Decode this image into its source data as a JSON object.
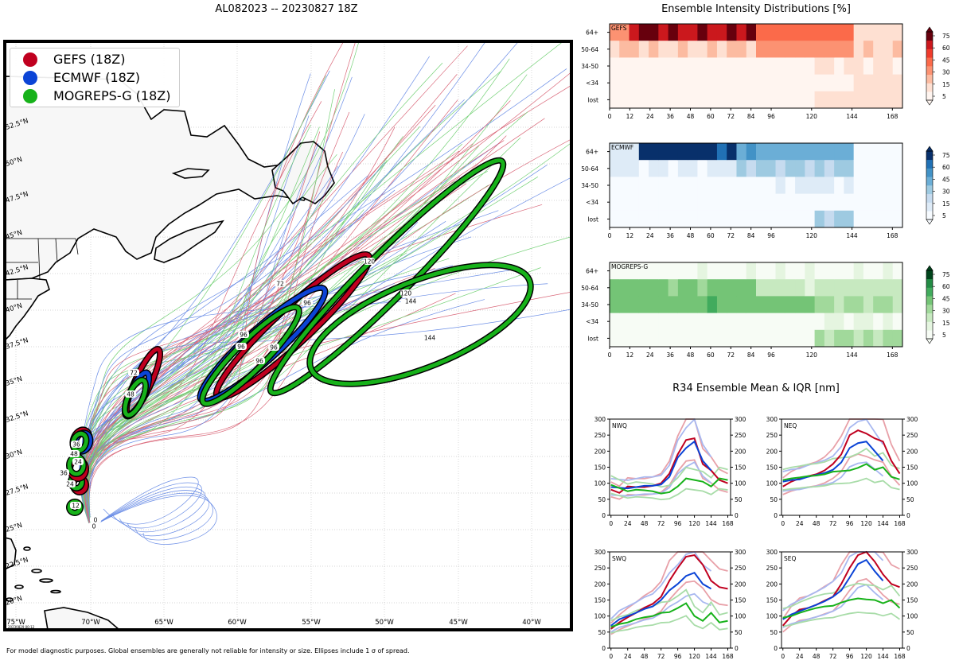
{
  "map": {
    "title": "AL082023 -- 20230827 18Z",
    "footer": "For model diagnostic purposes. Global ensembles are generally not reliable for intensity or size. Ellipses include 1 σ of spread.",
    "stamp": "20230829 00:12",
    "legend": [
      {
        "label": "GEFS (18Z)",
        "color": "#c0001f"
      },
      {
        "label": "ECMWF (18Z)",
        "color": "#0b44d6"
      },
      {
        "label": "MOGREPS-G (18Z)",
        "color": "#17b21a"
      }
    ],
    "lon_labels": [
      "75°W",
      "70°W",
      "65°W",
      "60°W",
      "55°W",
      "50°W",
      "45°W",
      "40°W"
    ],
    "lat_labels": [
      "20°N",
      "22.5°N",
      "25°N",
      "27.5°N",
      "30°N",
      "32.5°N",
      "35°N",
      "37.5°N",
      "40°N",
      "42.5°N",
      "45°N",
      "47.5°N",
      "50°N",
      "52.5°N"
    ],
    "hour_labels": [
      "0",
      "0",
      "12",
      "24",
      "24",
      "36",
      "36",
      "48",
      "48",
      "72",
      "72",
      "96",
      "96",
      "96",
      "96",
      "96",
      "120",
      "120",
      "144",
      "144"
    ]
  },
  "chart_data": [
    {
      "type": "heatmap",
      "title": "Ensemble Intensity Distributions [%]",
      "panel": "GEFS",
      "rows": [
        "64+",
        "50-64",
        "34-50",
        "<34",
        "lost"
      ],
      "x_ticks": [
        "0",
        "12",
        "24",
        "36",
        "48",
        "60",
        "72",
        "84",
        "96",
        "120",
        "144",
        "168"
      ],
      "x_range": [
        0,
        174
      ],
      "colorbar_ticks": [
        "75",
        "60",
        "45",
        "30",
        "15",
        "5"
      ],
      "colormap": "Reds"
    },
    {
      "type": "heatmap",
      "panel": "ECMWF",
      "rows": [
        "64+",
        "50-64",
        "34-50",
        "<34",
        "lost"
      ],
      "x_ticks": [
        "0",
        "12",
        "24",
        "36",
        "48",
        "60",
        "72",
        "84",
        "96",
        "120",
        "144",
        "168"
      ],
      "x_range": [
        0,
        174
      ],
      "colorbar_ticks": [
        "75",
        "60",
        "45",
        "30",
        "15",
        "5"
      ],
      "colormap": "Blues"
    },
    {
      "type": "heatmap",
      "panel": "MOGREPS-G",
      "rows": [
        "64+",
        "50-64",
        "34-50",
        "<34",
        "lost"
      ],
      "x_ticks": [
        "0",
        "12",
        "24",
        "36",
        "48",
        "60",
        "72",
        "84",
        "96",
        "120",
        "144",
        "168"
      ],
      "x_range": [
        0,
        174
      ],
      "colorbar_ticks": [
        "75",
        "60",
        "45",
        "30",
        "15",
        "5"
      ],
      "colormap": "Greens"
    },
    {
      "type": "line",
      "title": "R34 Ensemble Mean & IQR [nm]",
      "panels": [
        {
          "name": "NWQ",
          "series": [
            {
              "name": "GEFS",
              "x": [
                0,
                12,
                24,
                36,
                48,
                60,
                72,
                84,
                96,
                108,
                120,
                132,
                144,
                156,
                168
              ],
              "values": [
                80,
                70,
                90,
                88,
                88,
                92,
                100,
                130,
                190,
                235,
                240,
                160,
                140,
                110,
                100
              ]
            },
            {
              "name": "ECMWF",
              "x": [
                0,
                12,
                24,
                36,
                48,
                60,
                72,
                84,
                96,
                108,
                120,
                132,
                144
              ],
              "values": [
                88,
                86,
                84,
                88,
                92,
                92,
                96,
                120,
                180,
                210,
                230,
                170,
                140
              ]
            },
            {
              "name": "MOGREPS-G",
              "x": [
                0,
                12,
                24,
                36,
                48,
                60,
                72,
                84,
                96,
                108,
                120,
                132,
                144,
                156,
                168
              ],
              "values": [
                95,
                85,
                75,
                80,
                78,
                75,
                68,
                72,
                90,
                115,
                110,
                105,
                90,
                115,
                110
              ]
            }
          ]
        },
        {
          "name": "NEQ",
          "series": [
            {
              "name": "GEFS",
              "x": [
                0,
                12,
                24,
                36,
                48,
                60,
                72,
                84,
                96,
                108,
                120,
                132,
                144,
                156,
                168
              ],
              "values": [
                90,
                105,
                115,
                122,
                128,
                140,
                160,
                190,
                250,
                265,
                255,
                240,
                230,
                170,
                130
              ]
            },
            {
              "name": "ECMWF",
              "x": [
                0,
                12,
                24,
                36,
                48,
                60,
                72,
                84,
                96,
                108,
                120,
                132,
                144
              ],
              "values": [
                105,
                110,
                112,
                120,
                126,
                132,
                142,
                165,
                210,
                225,
                230,
                200,
                170
              ]
            },
            {
              "name": "MOGREPS-G",
              "x": [
                0,
                12,
                24,
                36,
                48,
                60,
                72,
                84,
                96,
                108,
                120,
                132,
                144,
                156,
                168
              ],
              "values": [
                110,
                115,
                118,
                122,
                124,
                128,
                136,
                138,
                140,
                148,
                160,
                142,
                150,
                120,
                112
              ]
            }
          ]
        },
        {
          "name": "SWQ",
          "series": [
            {
              "name": "GEFS",
              "x": [
                0,
                12,
                24,
                36,
                48,
                60,
                72,
                84,
                96,
                108,
                120,
                132,
                144,
                156,
                168
              ],
              "values": [
                60,
                80,
                96,
                110,
                126,
                138,
                160,
                210,
                250,
                285,
                290,
                260,
                210,
                190,
                185
              ]
            },
            {
              "name": "ECMWF",
              "x": [
                0,
                12,
                24,
                36,
                48,
                60,
                72,
                84,
                96,
                108,
                120,
                132,
                144
              ],
              "values": [
                70,
                90,
                100,
                110,
                122,
                130,
                150,
                180,
                200,
                225,
                235,
                200,
                185
              ]
            },
            {
              "name": "MOGREPS-G",
              "x": [
                0,
                12,
                24,
                36,
                48,
                60,
                72,
                84,
                96,
                108,
                120,
                132,
                144,
                156,
                168
              ],
              "values": [
                66,
                75,
                80,
                90,
                96,
                100,
                110,
                112,
                125,
                140,
                100,
                85,
                110,
                80,
                85
              ]
            }
          ]
        },
        {
          "name": "SEQ",
          "series": [
            {
              "name": "GEFS",
              "x": [
                0,
                12,
                24,
                36,
                48,
                60,
                72,
                84,
                96,
                108,
                120,
                132,
                144,
                156,
                168
              ],
              "values": [
                70,
                100,
                120,
                125,
                135,
                148,
                160,
                200,
                250,
                290,
                300,
                270,
                230,
                200,
                190
              ]
            },
            {
              "name": "ECMWF",
              "x": [
                0,
                12,
                24,
                36,
                48,
                60,
                72,
                84,
                96,
                108,
                120,
                132,
                144
              ],
              "values": [
                90,
                105,
                115,
                125,
                135,
                146,
                160,
                180,
                220,
                262,
                275,
                240,
                210
              ]
            },
            {
              "name": "MOGREPS-G",
              "x": [
                0,
                12,
                24,
                36,
                48,
                60,
                72,
                84,
                96,
                108,
                120,
                132,
                144,
                156,
                168
              ],
              "values": [
                95,
                100,
                110,
                118,
                125,
                130,
                132,
                142,
                150,
                155,
                152,
                150,
                140,
                150,
                125
              ]
            }
          ]
        }
      ],
      "x_ticks": [
        "0",
        "24",
        "48",
        "72",
        "96",
        "120",
        "144",
        "168"
      ],
      "y_ticks": [
        "0",
        "50",
        "100",
        "150",
        "200",
        "250",
        "300"
      ],
      "xlim": [
        -2,
        172
      ],
      "ylim": [
        0,
        300
      ]
    }
  ]
}
